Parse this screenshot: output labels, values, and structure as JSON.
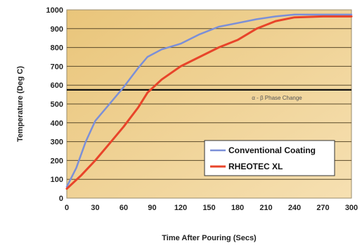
{
  "chart_data": {
    "type": "line",
    "xlabel": "Time After Pouring (Secs)",
    "ylabel": "Temperature (Deg C)",
    "xlim": [
      0,
      300
    ],
    "ylim": [
      0,
      1000
    ],
    "xticks": [
      0,
      30,
      60,
      90,
      120,
      150,
      180,
      210,
      240,
      270,
      300
    ],
    "yticks": [
      0,
      100,
      200,
      300,
      400,
      500,
      600,
      700,
      800,
      900,
      1000
    ],
    "grid": "horizontal",
    "legend_position": "bottom-right",
    "reference_line": {
      "y": 575,
      "label": "α - β Phase Change"
    },
    "series": [
      {
        "name": "Conventional Coating",
        "color": "#7b8fd8",
        "x": [
          0,
          10,
          20,
          30,
          45,
          60,
          75,
          85,
          100,
          120,
          140,
          160,
          180,
          200,
          220,
          240,
          270,
          300
        ],
        "y": [
          60,
          160,
          300,
          410,
          500,
          590,
          690,
          750,
          790,
          820,
          870,
          910,
          930,
          950,
          965,
          975,
          975,
          975
        ]
      },
      {
        "name": "RHEOTEC XL",
        "color": "#e8442a",
        "x": [
          0,
          15,
          30,
          45,
          60,
          75,
          85,
          100,
          120,
          140,
          160,
          180,
          200,
          220,
          240,
          270,
          300
        ],
        "y": [
          50,
          120,
          200,
          290,
          380,
          480,
          560,
          630,
          700,
          750,
          800,
          840,
          900,
          940,
          960,
          965,
          965
        ]
      }
    ]
  }
}
